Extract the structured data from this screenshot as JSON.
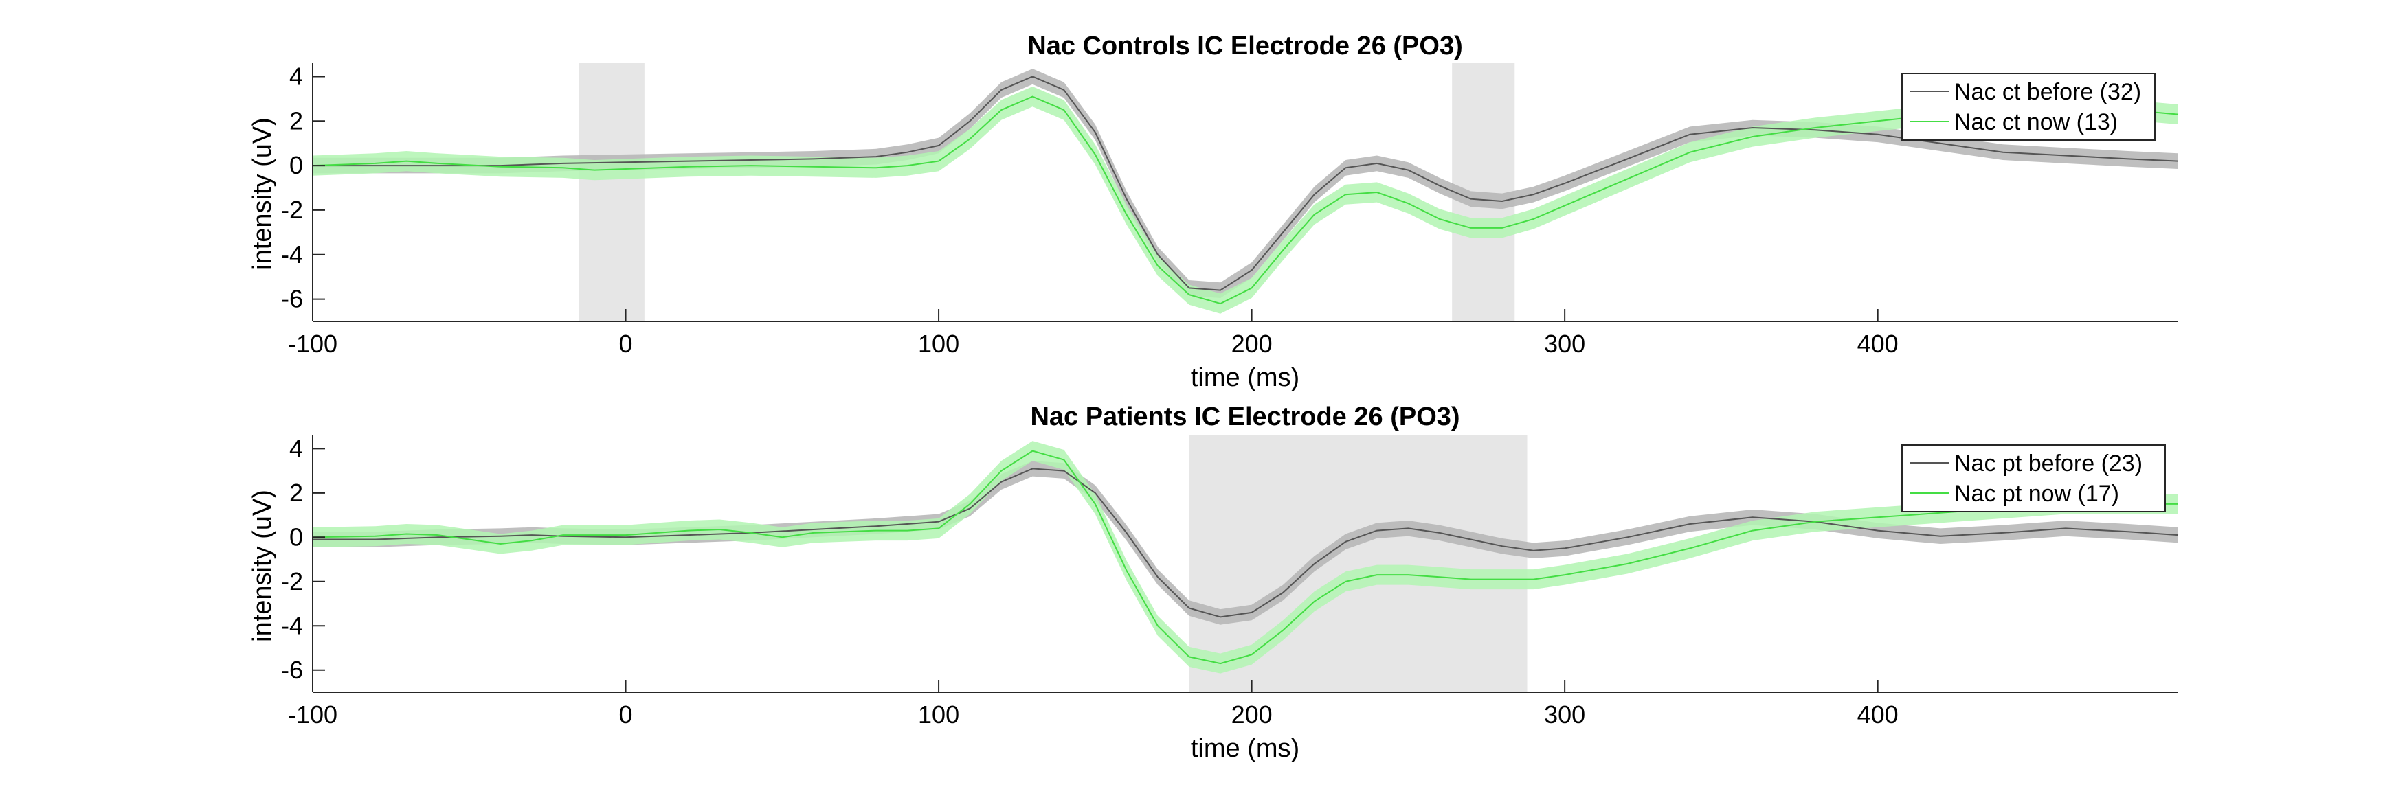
{
  "chart_data": [
    {
      "type": "line",
      "title": "Nac Controls IC Electrode 26 (PO3)",
      "xlabel": "time (ms)",
      "ylabel": "intensity (uV)",
      "xlim": [
        -100,
        496
      ],
      "ylim": [
        -7,
        4.6
      ],
      "xticks": [
        -100,
        0,
        100,
        200,
        300,
        400
      ],
      "yticks": [
        -6,
        -4,
        -2,
        0,
        2,
        4
      ],
      "legend_position": "top-right",
      "shaded_windows": [
        [
          -15,
          6
        ],
        [
          264,
          284
        ]
      ],
      "series": [
        {
          "name": "Nac ct before (32)",
          "color": "#555555",
          "band_color": "#b4b4b4",
          "band": 0.35,
          "x": [
            -100,
            -80,
            -60,
            -40,
            -20,
            0,
            20,
            40,
            60,
            80,
            90,
            100,
            110,
            120,
            130,
            140,
            150,
            160,
            170,
            180,
            190,
            200,
            210,
            220,
            230,
            240,
            250,
            260,
            270,
            280,
            290,
            300,
            320,
            340,
            360,
            380,
            400,
            420,
            440,
            460,
            480,
            496
          ],
          "y": [
            0,
            0,
            0,
            0,
            0.1,
            0.15,
            0.2,
            0.25,
            0.3,
            0.4,
            0.6,
            0.9,
            2.0,
            3.4,
            4.0,
            3.4,
            1.5,
            -1.5,
            -4.0,
            -5.5,
            -5.6,
            -4.7,
            -3.0,
            -1.3,
            -0.1,
            0.1,
            -0.2,
            -0.9,
            -1.5,
            -1.6,
            -1.3,
            -0.8,
            0.3,
            1.4,
            1.7,
            1.6,
            1.4,
            1.0,
            0.6,
            0.45,
            0.3,
            0.2
          ]
        },
        {
          "name": "Nac ct now (13)",
          "color": "#44dd44",
          "band_color": "#b2f5b2",
          "band": 0.45,
          "x": [
            -100,
            -80,
            -70,
            -60,
            -40,
            -20,
            -10,
            0,
            20,
            40,
            60,
            80,
            90,
            100,
            110,
            120,
            130,
            140,
            150,
            160,
            170,
            180,
            190,
            200,
            210,
            220,
            230,
            240,
            250,
            260,
            270,
            280,
            290,
            300,
            320,
            340,
            360,
            380,
            400,
            420,
            440,
            460,
            480,
            496
          ],
          "y": [
            0,
            0.1,
            0.2,
            0.1,
            -0.05,
            -0.1,
            -0.2,
            -0.15,
            -0.05,
            0,
            -0.05,
            -0.1,
            0,
            0.2,
            1.2,
            2.5,
            3.1,
            2.5,
            0.5,
            -2.2,
            -4.5,
            -5.8,
            -6.2,
            -5.5,
            -3.8,
            -2.2,
            -1.3,
            -1.2,
            -1.7,
            -2.4,
            -2.8,
            -2.8,
            -2.4,
            -1.8,
            -0.6,
            0.6,
            1.3,
            1.7,
            2.0,
            2.3,
            2.5,
            2.6,
            2.5,
            2.3
          ]
        }
      ]
    },
    {
      "type": "line",
      "title": "Nac Patients IC Electrode 26 (PO3)",
      "xlabel": "time (ms)",
      "ylabel": "intensity (uV)",
      "xlim": [
        -100,
        496
      ],
      "ylim": [
        -7,
        4.6
      ],
      "xticks": [
        -100,
        0,
        100,
        200,
        300,
        400
      ],
      "yticks": [
        -6,
        -4,
        -2,
        0,
        2,
        4
      ],
      "legend_position": "top-right",
      "shaded_windows": [
        [
          180,
          288
        ]
      ],
      "series": [
        {
          "name": "Nac pt before (23)",
          "color": "#555555",
          "band_color": "#b4b4b4",
          "band": 0.35,
          "x": [
            -100,
            -80,
            -60,
            -40,
            -30,
            -20,
            0,
            20,
            40,
            60,
            80,
            100,
            110,
            120,
            130,
            140,
            150,
            160,
            170,
            180,
            190,
            200,
            210,
            220,
            230,
            240,
            250,
            260,
            270,
            280,
            290,
            300,
            320,
            340,
            360,
            380,
            400,
            420,
            440,
            460,
            480,
            496
          ],
          "y": [
            -0.1,
            -0.1,
            0,
            0.05,
            0.1,
            0.05,
            0,
            0.1,
            0.2,
            0.35,
            0.5,
            0.7,
            1.3,
            2.5,
            3.1,
            3.0,
            2.0,
            0.2,
            -1.8,
            -3.2,
            -3.6,
            -3.4,
            -2.5,
            -1.2,
            -0.2,
            0.3,
            0.4,
            0.2,
            -0.1,
            -0.4,
            -0.6,
            -0.5,
            0,
            0.6,
            0.9,
            0.7,
            0.3,
            0.05,
            0.2,
            0.4,
            0.25,
            0.1
          ]
        },
        {
          "name": "Nac pt now (17)",
          "color": "#44dd44",
          "band_color": "#b2f5b2",
          "band": 0.45,
          "x": [
            -100,
            -80,
            -70,
            -60,
            -50,
            -40,
            -30,
            -20,
            -10,
            0,
            10,
            20,
            30,
            40,
            50,
            60,
            80,
            90,
            100,
            110,
            120,
            130,
            140,
            150,
            160,
            170,
            180,
            190,
            200,
            210,
            220,
            230,
            240,
            250,
            260,
            270,
            280,
            290,
            300,
            320,
            340,
            360,
            380,
            400,
            420,
            440,
            460,
            480,
            496
          ],
          "y": [
            0,
            0.05,
            0.15,
            0.1,
            -0.1,
            -0.3,
            -0.15,
            0.1,
            0.1,
            0.1,
            0.2,
            0.3,
            0.35,
            0.2,
            0,
            0.2,
            0.3,
            0.3,
            0.4,
            1.5,
            3.0,
            3.9,
            3.5,
            1.5,
            -1.5,
            -4.0,
            -5.4,
            -5.7,
            -5.3,
            -4.2,
            -2.9,
            -2.0,
            -1.7,
            -1.7,
            -1.8,
            -1.9,
            -1.9,
            -1.9,
            -1.7,
            -1.2,
            -0.5,
            0.3,
            0.7,
            0.9,
            1.1,
            1.3,
            1.5,
            1.5,
            1.5
          ]
        }
      ]
    }
  ]
}
